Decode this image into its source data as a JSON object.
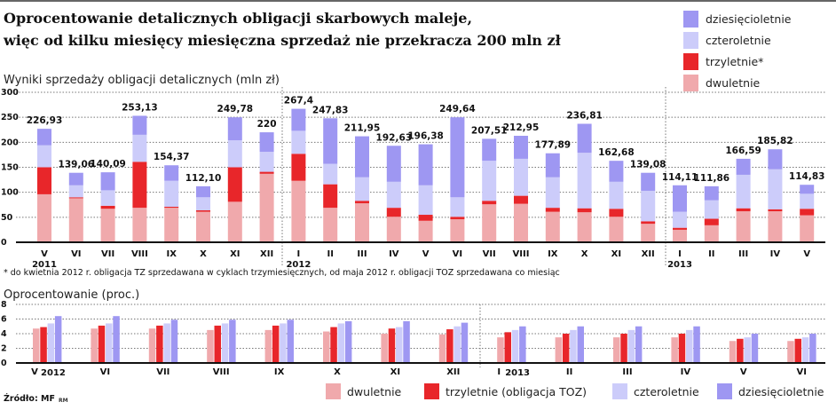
{
  "title_line1": "Oprocentowanie detalicznych obligacji skarbowych maleje,",
  "title_line2": "więc od kilku miesięcy miesięczna sprzedaż nie przekracza 200 mln zł",
  "source": "Źródło: MF",
  "author": "RM",
  "colors": {
    "dwuletnie": "#f0a9ac",
    "trzyletnie": "#e8262a",
    "czteroletnie": "#ccccfa",
    "dziesiecioletnie": "#9e97f2"
  },
  "chart_data": [
    {
      "type": "bar",
      "stacked": true,
      "title": "Wyniki sprzedaży obligacji detalicznych (mln zł)",
      "ylim": [
        0,
        300
      ],
      "yticks": [
        "0",
        "50",
        "100",
        "150",
        "200",
        "250",
        "300"
      ],
      "grid": true,
      "legend_position": "top-right",
      "legend": [
        "dziesięcioletnie",
        "czteroletnie",
        "trzyletnie*",
        "dwuletnie"
      ],
      "categories": [
        "V",
        "VI",
        "VII",
        "VIII",
        "IX",
        "X",
        "XI",
        "XII",
        "I",
        "II",
        "III",
        "IV",
        "V",
        "VI",
        "VII",
        "VIII",
        "IX",
        "X",
        "XI",
        "XII",
        "I",
        "II",
        "III",
        "IV",
        "V"
      ],
      "year_labels": [
        {
          "index": 0,
          "text": "2011"
        },
        {
          "index": 8,
          "text": "2012"
        },
        {
          "index": 20,
          "text": "2013"
        }
      ],
      "totals": [
        "226,93",
        "139,06",
        "140,09",
        "253,13",
        "154,37",
        "112,10",
        "249,78",
        "220",
        "267,4",
        "247,83",
        "211,95",
        "192,63",
        "196,38",
        "249,64",
        "207,51",
        "212,95",
        "177,89",
        "236,81",
        "162,68",
        "139,08",
        "114,11",
        "111,86",
        "166,59",
        "185,82",
        "114,83"
      ],
      "series": [
        {
          "name": "dwuletnie",
          "values": [
            96,
            88,
            67,
            69,
            69,
            61,
            81,
            137,
            123,
            69,
            78,
            51,
            43,
            46,
            76,
            77,
            61,
            60,
            51,
            37,
            25,
            34,
            62,
            62,
            54
          ]
        },
        {
          "name": "trzyletnie*",
          "values": [
            54,
            2,
            6,
            92,
            2,
            3,
            69,
            4,
            54,
            47,
            5,
            18,
            12,
            5,
            7,
            16,
            8,
            8,
            16,
            5,
            4,
            13,
            6,
            4,
            13
          ]
        },
        {
          "name": "czteroletnie",
          "values": [
            44,
            24,
            31,
            54,
            52,
            26,
            54,
            40,
            46,
            41,
            47,
            52,
            59,
            39,
            80,
            74,
            61,
            111,
            54,
            61,
            32,
            37,
            67,
            80,
            30
          ]
        },
        {
          "name": "dziesięcioletnie",
          "values": [
            33,
            25,
            36,
            38,
            31,
            22,
            46,
            39,
            44,
            91,
            82,
            72,
            82,
            160,
            44,
            46,
            48,
            58,
            42,
            36,
            53,
            28,
            32,
            40,
            18
          ]
        }
      ],
      "footnote": "* do kwietnia 2012 r. obligacja TZ sprzedawana w cyklach trzymiesięcznych, od maja 2012 r. obligacji TOZ sprzedawana co miesiąc"
    },
    {
      "type": "bar",
      "title": "Oprocentowanie (proc.)",
      "ylim": [
        0,
        8
      ],
      "yticks": [
        "0",
        "2",
        "4",
        "6",
        "8"
      ],
      "grid": true,
      "legend_position": "bottom",
      "categories": [
        "V",
        "VI",
        "VII",
        "VIII",
        "IX",
        "X",
        "XI",
        "XII",
        "I",
        "II",
        "III",
        "IV",
        "V",
        "VI"
      ],
      "year_labels": [
        {
          "index": 0,
          "text": "2012"
        },
        {
          "index": 8,
          "text": "2013"
        }
      ],
      "series": [
        {
          "name": "dwuletnie",
          "values": [
            4.7,
            4.7,
            4.7,
            4.5,
            4.5,
            4.3,
            4.0,
            3.9,
            3.5,
            3.5,
            3.5,
            3.5,
            3.0,
            3.0
          ]
        },
        {
          "name": "trzyletnie (obligacja TOZ)",
          "values": [
            4.9,
            5.1,
            5.1,
            5.1,
            5.1,
            4.9,
            4.7,
            4.6,
            4.2,
            4.0,
            4.0,
            4.0,
            3.3,
            3.3
          ]
        },
        {
          "name": "czteroletnie",
          "values": [
            5.4,
            5.4,
            5.4,
            5.4,
            5.4,
            5.4,
            4.9,
            5.0,
            4.5,
            4.5,
            4.5,
            4.5,
            3.5,
            3.5
          ]
        },
        {
          "name": "dziesięcioletnie",
          "values": [
            6.4,
            6.4,
            5.9,
            5.9,
            5.9,
            5.7,
            5.7,
            5.5,
            5.0,
            5.0,
            5.0,
            5.0,
            4.0,
            4.0
          ]
        }
      ]
    }
  ]
}
